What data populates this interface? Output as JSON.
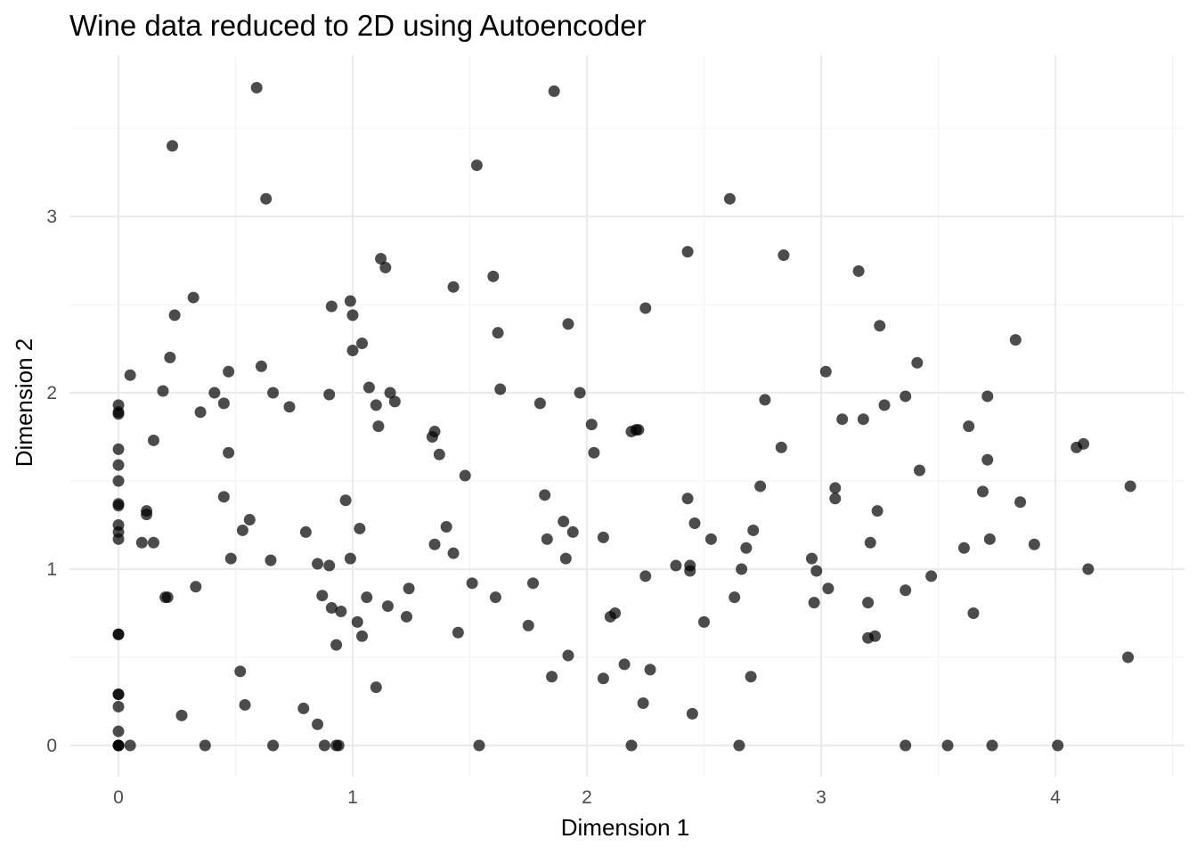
{
  "chart_data": {
    "type": "scatter",
    "title": "Wine data reduced to 2D using Autoencoder",
    "xlabel": "Dimension 1",
    "ylabel": "Dimension 2",
    "xlim": [
      -0.2,
      4.5
    ],
    "ylim": [
      -0.15,
      3.9
    ],
    "x_ticks": [
      0,
      1,
      2,
      3,
      4
    ],
    "y_ticks": [
      0,
      1,
      2,
      3
    ],
    "x_tick_labels": [
      "0",
      "1",
      "2",
      "3",
      "4"
    ],
    "y_tick_labels": [
      "0",
      "1",
      "2",
      "3"
    ],
    "grid": true,
    "legend": "none",
    "point_color": "#000000",
    "points": [
      [
        0.0,
        1.93
      ],
      [
        0.0,
        1.89
      ],
      [
        0.0,
        1.88
      ],
      [
        0.0,
        1.68
      ],
      [
        0.0,
        1.59
      ],
      [
        0.0,
        1.5
      ],
      [
        0.0,
        1.37
      ],
      [
        0.0,
        1.36
      ],
      [
        0.0,
        1.25
      ],
      [
        0.0,
        1.21
      ],
      [
        0.0,
        1.17
      ],
      [
        0.0,
        0.63
      ],
      [
        0.0,
        0.63
      ],
      [
        0.0,
        0.29
      ],
      [
        0.0,
        0.29
      ],
      [
        0.0,
        0.22
      ],
      [
        0.0,
        0.08
      ],
      [
        0.0,
        0.0
      ],
      [
        0.0,
        0.0
      ],
      [
        0.0,
        0.0
      ],
      [
        0.05,
        0.0
      ],
      [
        0.05,
        2.1
      ],
      [
        0.1,
        1.15
      ],
      [
        0.12,
        1.33
      ],
      [
        0.12,
        1.31
      ],
      [
        0.15,
        1.73
      ],
      [
        0.15,
        1.15
      ],
      [
        0.19,
        2.01
      ],
      [
        0.2,
        0.84
      ],
      [
        0.21,
        0.84
      ],
      [
        0.22,
        2.2
      ],
      [
        0.23,
        3.4
      ],
      [
        0.24,
        2.44
      ],
      [
        0.27,
        0.17
      ],
      [
        0.32,
        2.54
      ],
      [
        0.33,
        0.9
      ],
      [
        0.35,
        1.89
      ],
      [
        0.37,
        0.0
      ],
      [
        0.41,
        2.0
      ],
      [
        0.45,
        1.94
      ],
      [
        0.45,
        1.41
      ],
      [
        0.47,
        2.12
      ],
      [
        0.47,
        1.66
      ],
      [
        0.48,
        1.06
      ],
      [
        0.52,
        0.42
      ],
      [
        0.53,
        1.22
      ],
      [
        0.54,
        0.23
      ],
      [
        0.56,
        1.28
      ],
      [
        0.59,
        3.73
      ],
      [
        0.61,
        2.15
      ],
      [
        0.63,
        3.1
      ],
      [
        0.65,
        1.05
      ],
      [
        0.66,
        2.0
      ],
      [
        0.66,
        0.0
      ],
      [
        0.73,
        1.92
      ],
      [
        0.79,
        0.21
      ],
      [
        0.8,
        1.21
      ],
      [
        0.85,
        1.03
      ],
      [
        0.85,
        0.12
      ],
      [
        0.87,
        0.85
      ],
      [
        0.88,
        0.0
      ],
      [
        0.9,
        1.02
      ],
      [
        0.9,
        1.99
      ],
      [
        0.91,
        2.49
      ],
      [
        0.91,
        0.78
      ],
      [
        0.93,
        0.57
      ],
      [
        0.93,
        0.0
      ],
      [
        0.94,
        0.0
      ],
      [
        0.95,
        0.76
      ],
      [
        0.97,
        1.39
      ],
      [
        0.99,
        2.52
      ],
      [
        0.99,
        1.06
      ],
      [
        1.0,
        2.44
      ],
      [
        1.0,
        2.24
      ],
      [
        1.02,
        0.7
      ],
      [
        1.03,
        1.23
      ],
      [
        1.04,
        2.28
      ],
      [
        1.04,
        0.62
      ],
      [
        1.06,
        0.84
      ],
      [
        1.07,
        2.03
      ],
      [
        1.1,
        1.93
      ],
      [
        1.1,
        0.33
      ],
      [
        1.11,
        1.81
      ],
      [
        1.12,
        2.76
      ],
      [
        1.14,
        2.71
      ],
      [
        1.15,
        0.79
      ],
      [
        1.16,
        2.0
      ],
      [
        1.18,
        1.95
      ],
      [
        1.23,
        0.73
      ],
      [
        1.24,
        0.89
      ],
      [
        1.34,
        1.75
      ],
      [
        1.35,
        1.78
      ],
      [
        1.35,
        1.14
      ],
      [
        1.37,
        1.65
      ],
      [
        1.4,
        1.24
      ],
      [
        1.43,
        1.09
      ],
      [
        1.43,
        2.6
      ],
      [
        1.45,
        0.64
      ],
      [
        1.48,
        1.53
      ],
      [
        1.51,
        0.92
      ],
      [
        1.53,
        3.29
      ],
      [
        1.54,
        0.0
      ],
      [
        1.6,
        2.66
      ],
      [
        1.61,
        0.84
      ],
      [
        1.62,
        2.34
      ],
      [
        1.63,
        2.02
      ],
      [
        1.75,
        0.68
      ],
      [
        1.77,
        0.92
      ],
      [
        1.8,
        1.94
      ],
      [
        1.82,
        1.42
      ],
      [
        1.83,
        1.17
      ],
      [
        1.85,
        0.39
      ],
      [
        1.86,
        3.71
      ],
      [
        1.9,
        1.27
      ],
      [
        1.91,
        1.06
      ],
      [
        1.92,
        2.39
      ],
      [
        1.92,
        0.51
      ],
      [
        1.94,
        1.21
      ],
      [
        1.97,
        2.0
      ],
      [
        2.02,
        1.82
      ],
      [
        2.03,
        1.66
      ],
      [
        2.07,
        0.38
      ],
      [
        2.07,
        1.18
      ],
      [
        2.1,
        0.73
      ],
      [
        2.12,
        0.75
      ],
      [
        2.16,
        0.46
      ],
      [
        2.19,
        1.78
      ],
      [
        2.21,
        1.79
      ],
      [
        2.22,
        1.79
      ],
      [
        2.19,
        0.0
      ],
      [
        2.24,
        0.24
      ],
      [
        2.25,
        2.48
      ],
      [
        2.25,
        0.96
      ],
      [
        2.27,
        0.43
      ],
      [
        2.38,
        1.02
      ],
      [
        2.43,
        1.4
      ],
      [
        2.43,
        2.8
      ],
      [
        2.44,
        1.02
      ],
      [
        2.44,
        0.99
      ],
      [
        2.45,
        0.18
      ],
      [
        2.46,
        1.26
      ],
      [
        2.5,
        0.7
      ],
      [
        2.53,
        1.17
      ],
      [
        2.61,
        3.1
      ],
      [
        2.63,
        0.84
      ],
      [
        2.65,
        0.0
      ],
      [
        2.66,
        1.0
      ],
      [
        2.68,
        1.12
      ],
      [
        2.7,
        0.39
      ],
      [
        2.71,
        1.22
      ],
      [
        2.74,
        1.47
      ],
      [
        2.76,
        1.96
      ],
      [
        2.83,
        1.69
      ],
      [
        2.84,
        2.78
      ],
      [
        2.96,
        1.06
      ],
      [
        2.97,
        0.81
      ],
      [
        2.98,
        0.99
      ],
      [
        3.02,
        2.12
      ],
      [
        3.03,
        0.89
      ],
      [
        3.06,
        1.4
      ],
      [
        3.06,
        1.46
      ],
      [
        3.09,
        1.85
      ],
      [
        3.16,
        2.69
      ],
      [
        3.18,
        1.85
      ],
      [
        3.2,
        0.81
      ],
      [
        3.2,
        0.61
      ],
      [
        3.21,
        1.15
      ],
      [
        3.23,
        0.62
      ],
      [
        3.24,
        1.33
      ],
      [
        3.25,
        2.38
      ],
      [
        3.27,
        1.93
      ],
      [
        3.36,
        1.98
      ],
      [
        3.36,
        0.88
      ],
      [
        3.36,
        0.0
      ],
      [
        3.41,
        2.17
      ],
      [
        3.42,
        1.56
      ],
      [
        3.47,
        0.96
      ],
      [
        3.54,
        0.0
      ],
      [
        3.61,
        1.12
      ],
      [
        3.63,
        1.81
      ],
      [
        3.65,
        0.75
      ],
      [
        3.69,
        1.44
      ],
      [
        3.71,
        1.62
      ],
      [
        3.71,
        1.98
      ],
      [
        3.72,
        1.17
      ],
      [
        3.73,
        0.0
      ],
      [
        3.83,
        2.3
      ],
      [
        3.85,
        1.38
      ],
      [
        3.91,
        1.14
      ],
      [
        4.01,
        0.0
      ],
      [
        4.09,
        1.69
      ],
      [
        4.12,
        1.71
      ],
      [
        4.14,
        1.0
      ],
      [
        4.31,
        0.5
      ],
      [
        4.32,
        1.47
      ]
    ]
  }
}
